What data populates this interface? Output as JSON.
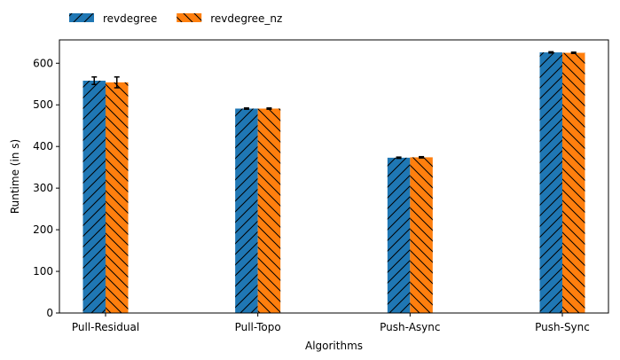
{
  "chart_data": {
    "type": "bar",
    "categories": [
      "Pull-Residual",
      "Pull-Topo",
      "Push-Async",
      "Push-Sync"
    ],
    "series": [
      {
        "name": "revdegree",
        "values": [
          558,
          491,
          373,
          626
        ],
        "errors": [
          9,
          1.5,
          1.5,
          1.5
        ],
        "color": "#1f77b4",
        "hatch": "forward-diagonal"
      },
      {
        "name": "revdegree_nz",
        "values": [
          554,
          491,
          374,
          625
        ],
        "errors": [
          13,
          1.5,
          1.5,
          1.5
        ],
        "color": "#ff7f0e",
        "hatch": "backward-diagonal"
      }
    ],
    "xlabel": "Algorithms",
    "ylabel": "Runtime (in s)",
    "ylim": [
      0,
      656
    ],
    "yticks": [
      0,
      100,
      200,
      300,
      400,
      500,
      600
    ],
    "grid": false,
    "legend_position": "top-left, outside plot, horizontal",
    "error_bars": true
  }
}
